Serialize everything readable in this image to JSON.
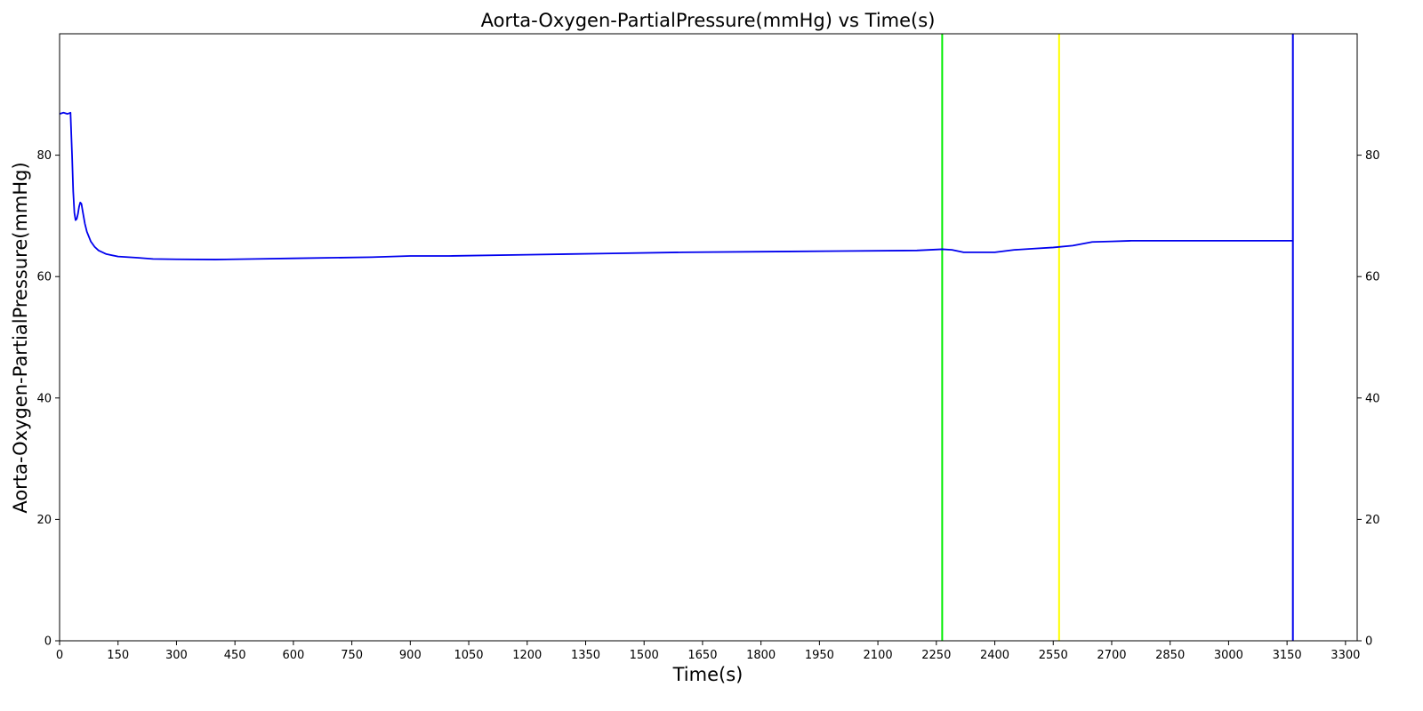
{
  "chart_data": {
    "type": "line",
    "title": "Aorta-Oxygen-PartialPressure(mmHg) vs Time(s)",
    "xlabel": "Time(s)",
    "ylabel": "Aorta-Oxygen-PartialPressure(mmHg)",
    "xlim": [
      0,
      3330
    ],
    "ylim": [
      0,
      100
    ],
    "x_ticks": [
      0,
      150,
      300,
      450,
      600,
      750,
      900,
      1050,
      1200,
      1350,
      1500,
      1650,
      1800,
      1950,
      2100,
      2250,
      2400,
      2550,
      2700,
      2850,
      3000,
      3150,
      3300
    ],
    "y_ticks": [
      0,
      20,
      40,
      60,
      80
    ],
    "right_y_ticks": [
      0,
      20,
      40,
      60,
      80
    ],
    "grid": false,
    "series": [
      {
        "color": "#0000ee",
        "x": [
          0,
          10,
          20,
          28,
          32,
          35,
          38,
          41,
          44,
          47,
          50,
          53,
          56,
          60,
          65,
          70,
          80,
          90,
          100,
          120,
          150,
          200,
          240,
          300,
          400,
          500,
          600,
          700,
          800,
          900,
          1000,
          1200,
          1400,
          1600,
          1800,
          2000,
          2200,
          2265,
          2290,
          2320,
          2400,
          2450,
          2500,
          2550,
          2600,
          2650,
          2700,
          2750,
          2800,
          3000,
          3165
        ],
        "y": [
          86.8,
          87.0,
          86.8,
          87.0,
          80.0,
          74.0,
          70.5,
          69.3,
          69.5,
          70.3,
          71.5,
          72.2,
          72.0,
          70.5,
          68.7,
          67.4,
          65.8,
          64.9,
          64.3,
          63.7,
          63.3,
          63.1,
          62.9,
          62.85,
          62.8,
          62.9,
          63.0,
          63.1,
          63.2,
          63.4,
          63.4,
          63.6,
          63.8,
          64.0,
          64.1,
          64.2,
          64.3,
          64.5,
          64.4,
          64.0,
          64.0,
          64.4,
          64.6,
          64.8,
          65.1,
          65.7,
          65.8,
          65.9,
          65.9,
          65.9,
          65.9
        ]
      }
    ],
    "vertical_lines": [
      {
        "x": 2265,
        "color": "#00ee00"
      },
      {
        "x": 2565,
        "color": "#ffff00"
      },
      {
        "x": 3165,
        "color": "#0000ee"
      }
    ]
  }
}
